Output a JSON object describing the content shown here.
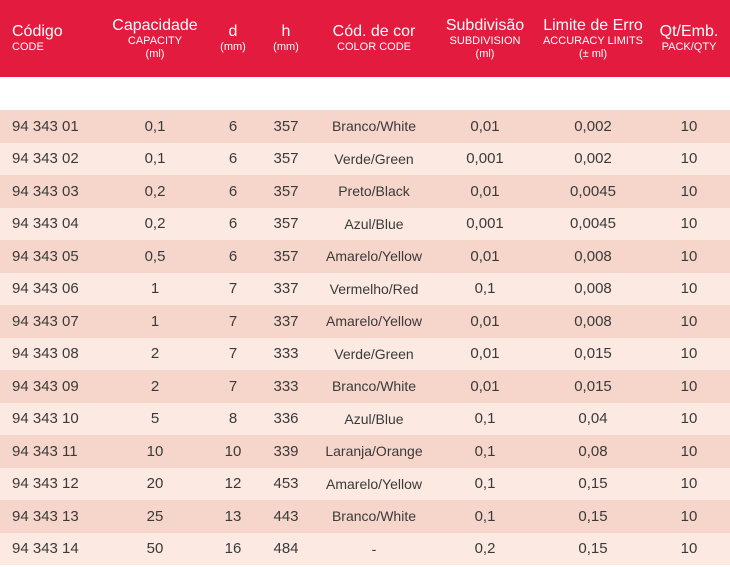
{
  "header": {
    "code": {
      "main": "Código",
      "sub": "CODE"
    },
    "capacity": {
      "main": "Capacidade",
      "sub": "CAPACITY",
      "unit": "(ml)"
    },
    "d": {
      "main": "d",
      "unit": "(mm)"
    },
    "h": {
      "main": "h",
      "unit": "(mm)"
    },
    "color": {
      "main": "Cód. de cor",
      "sub": "COLOR CODE"
    },
    "subdivision": {
      "main": "Subdivisão",
      "sub": "SUBDIVISION",
      "unit": "(ml)"
    },
    "limit": {
      "main": "Limite de Erro",
      "sub": "ACCURACY LIMITS",
      "unit": "(± ml)"
    },
    "qty": {
      "main": "Qt/Emb.",
      "sub": "PACK/QTY"
    }
  },
  "rows": [
    {
      "code": "94 343 01",
      "capacity": "0,1",
      "d": "6",
      "h": "357",
      "color": "Branco/White",
      "subdivision": "0,01",
      "limit": "0,002",
      "qty": "10"
    },
    {
      "code": "94 343 02",
      "capacity": "0,1",
      "d": "6",
      "h": "357",
      "color": "Verde/Green",
      "subdivision": "0,001",
      "limit": "0,002",
      "qty": "10"
    },
    {
      "code": "94 343 03",
      "capacity": "0,2",
      "d": "6",
      "h": "357",
      "color": "Preto/Black",
      "subdivision": "0,01",
      "limit": "0,0045",
      "qty": "10"
    },
    {
      "code": "94 343 04",
      "capacity": "0,2",
      "d": "6",
      "h": "357",
      "color": "Azul/Blue",
      "subdivision": "0,001",
      "limit": "0,0045",
      "qty": "10"
    },
    {
      "code": "94 343 05",
      "capacity": "0,5",
      "d": "6",
      "h": "357",
      "color": "Amarelo/Yellow",
      "subdivision": "0,01",
      "limit": "0,008",
      "qty": "10"
    },
    {
      "code": "94 343 06",
      "capacity": "1",
      "d": "7",
      "h": "337",
      "color": "Vermelho/Red",
      "subdivision": "0,1",
      "limit": "0,008",
      "qty": "10"
    },
    {
      "code": "94 343 07",
      "capacity": "1",
      "d": "7",
      "h": "337",
      "color": "Amarelo/Yellow",
      "subdivision": "0,01",
      "limit": "0,008",
      "qty": "10"
    },
    {
      "code": "94 343 08",
      "capacity": "2",
      "d": "7",
      "h": "333",
      "color": "Verde/Green",
      "subdivision": "0,01",
      "limit": "0,015",
      "qty": "10"
    },
    {
      "code": "94 343 09",
      "capacity": "2",
      "d": "7",
      "h": "333",
      "color": "Branco/White",
      "subdivision": "0,01",
      "limit": "0,015",
      "qty": "10"
    },
    {
      "code": "94 343 10",
      "capacity": "5",
      "d": "8",
      "h": "336",
      "color": "Azul/Blue",
      "subdivision": "0,1",
      "limit": "0,04",
      "qty": "10"
    },
    {
      "code": "94 343 11",
      "capacity": "10",
      "d": "10",
      "h": "339",
      "color": "Laranja/Orange",
      "subdivision": "0,1",
      "limit": "0,08",
      "qty": "10"
    },
    {
      "code": "94 343 12",
      "capacity": "20",
      "d": "12",
      "h": "453",
      "color": "Amarelo/Yellow",
      "subdivision": "0,1",
      "limit": "0,15",
      "qty": "10"
    },
    {
      "code": "94 343 13",
      "capacity": "25",
      "d": "13",
      "h": "443",
      "color": "Branco/White",
      "subdivision": "0,1",
      "limit": "0,15",
      "qty": "10"
    },
    {
      "code": "94 343 14",
      "capacity": "50",
      "d": "16",
      "h": "484",
      "color": "-",
      "subdivision": "0,2",
      "limit": "0,15",
      "qty": "10"
    }
  ],
  "colors": {
    "header_bg": "#e31b3e",
    "row_odd": "#f6d6cb",
    "row_even": "#fbe9e2"
  }
}
